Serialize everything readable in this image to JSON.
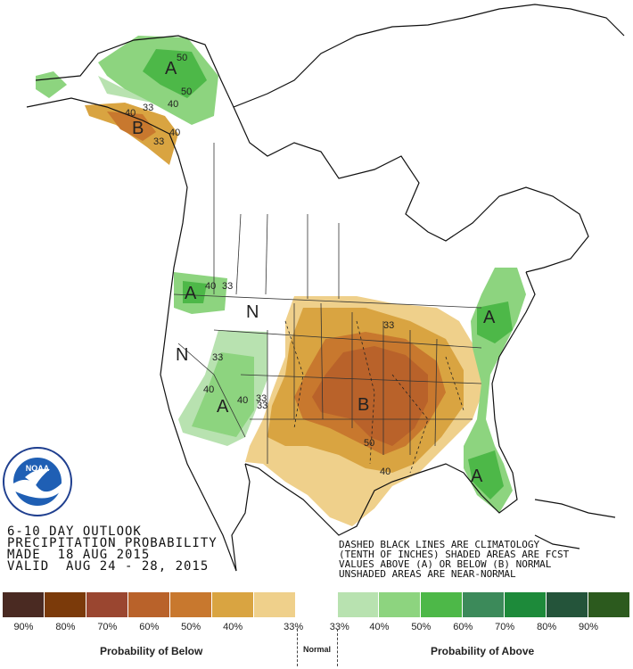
{
  "title": {
    "line1": "6-10 DAY OUTLOOK",
    "line2": "PRECIPITATION PROBABILITY",
    "line3": "MADE  18 AUG 2015",
    "line4": "VALID  AUG 24 - 28, 2015"
  },
  "notes": [
    "DASHED BLACK LINES ARE CLIMATOLOGY",
    "(TENTH OF INCHES) SHADED AREAS ARE FCST",
    "VALUES ABOVE (A) OR BELOW (B) NORMAL",
    "UNSHADED AREAS ARE NEAR-NORMAL"
  ],
  "legend": {
    "colors": [
      "#4a2a22",
      "#7b3a0a",
      "#9a4630",
      "#b9622a",
      "#c8782e",
      "#d9a441",
      "#efd08b",
      "#ffffff",
      "#b8e2b0",
      "#8dd47f",
      "#4db848",
      "#3c8a5a",
      "#1d8a3a",
      "#24543a",
      "#2c5a1e"
    ],
    "labels": [
      "90%",
      "80%",
      "70%",
      "60%",
      "50%",
      "40%",
      "33%",
      "33%",
      "40%",
      "50%",
      "60%",
      "70%",
      "80%",
      "90%"
    ],
    "below_caption": "Probability of Below",
    "normal_caption": "Normal",
    "above_caption": "Probability of Above"
  },
  "map_labels": {
    "letters": [
      "A",
      "B",
      "A",
      "N",
      "N",
      "A",
      "B",
      "A",
      "A"
    ],
    "numbers": [
      "50",
      "50",
      "40",
      "40",
      "33",
      "40",
      "33",
      "40",
      "33",
      "33",
      "40",
      "33",
      "40",
      "33",
      "50",
      "40",
      "33"
    ]
  },
  "logo": {
    "inner_text": "NOAA"
  }
}
